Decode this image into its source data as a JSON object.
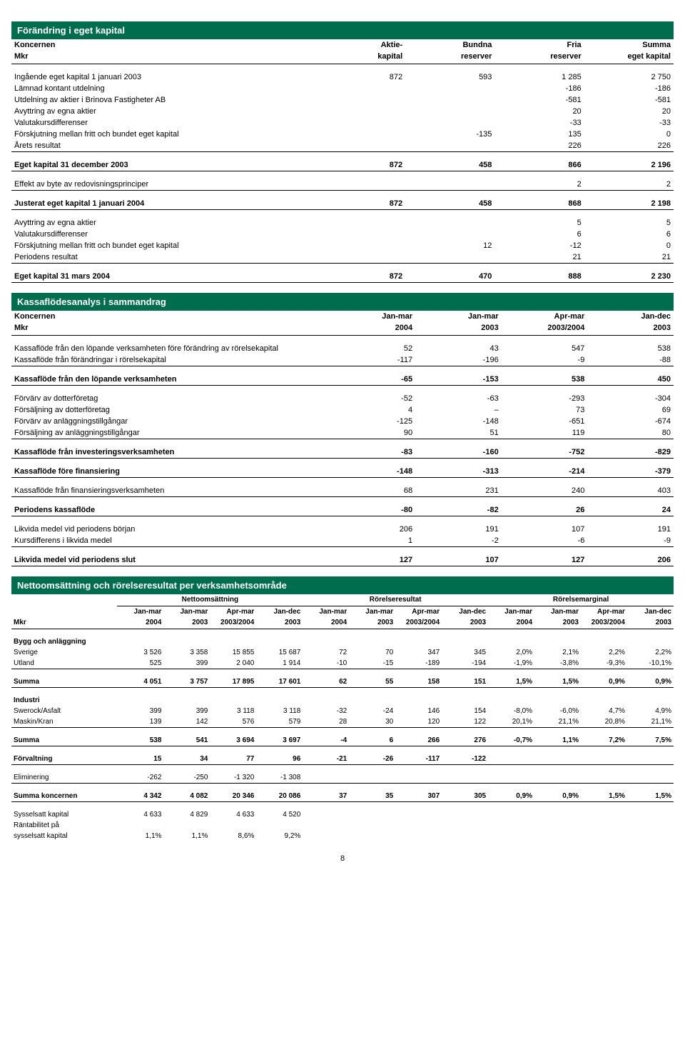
{
  "equity": {
    "title": "Förändring i eget kapital",
    "head_left1": "Koncernen",
    "head_left2": "Mkr",
    "head_c1a": "Aktie-",
    "head_c1b": "kapital",
    "head_c2a": "Bundna",
    "head_c2b": "reserver",
    "head_c3a": "Fria",
    "head_c3b": "reserver",
    "head_c4a": "Summa",
    "head_c4b": "eget kapital",
    "r1": {
      "l": "Ingående eget kapital 1 januari 2003",
      "c1": "872",
      "c2": "593",
      "c3": "1 285",
      "c4": "2 750"
    },
    "r2": {
      "l": "Lämnad kontant utdelning",
      "c1": "",
      "c2": "",
      "c3": "-186",
      "c4": "-186"
    },
    "r3": {
      "l": "Utdelning av aktier i Brinova Fastigheter AB",
      "c1": "",
      "c2": "",
      "c3": "-581",
      "c4": "-581"
    },
    "r4": {
      "l": "Avyttring av egna aktier",
      "c1": "",
      "c2": "",
      "c3": "20",
      "c4": "20"
    },
    "r5": {
      "l": "Valutakursdifferenser",
      "c1": "",
      "c2": "",
      "c3": "-33",
      "c4": "-33"
    },
    "r6": {
      "l": "Förskjutning mellan fritt och bundet eget kapital",
      "c1": "",
      "c2": "-135",
      "c3": "135",
      "c4": "0"
    },
    "r7": {
      "l": "Årets resultat",
      "c1": "",
      "c2": "",
      "c3": "226",
      "c4": "226"
    },
    "r8": {
      "l": "Eget kapital 31 december 2003",
      "c1": "872",
      "c2": "458",
      "c3": "866",
      "c4": "2 196"
    },
    "r9": {
      "l": "Effekt av byte av redovisningsprinciper",
      "c1": "",
      "c2": "",
      "c3": "2",
      "c4": "2"
    },
    "r10": {
      "l": "Justerat eget kapital 1 januari 2004",
      "c1": "872",
      "c2": "458",
      "c3": "868",
      "c4": "2 198"
    },
    "r11": {
      "l": "Avyttring av egna aktier",
      "c1": "",
      "c2": "",
      "c3": "5",
      "c4": "5"
    },
    "r12": {
      "l": "Valutakursdifferenser",
      "c1": "",
      "c2": "",
      "c3": "6",
      "c4": "6"
    },
    "r13": {
      "l": "Förskjutning mellan fritt och bundet eget kapital",
      "c1": "",
      "c2": "12",
      "c3": "-12",
      "c4": "0"
    },
    "r14": {
      "l": "Periodens resultat",
      "c1": "",
      "c2": "",
      "c3": "21",
      "c4": "21"
    },
    "r15": {
      "l": "Eget kapital 31 mars 2004",
      "c1": "872",
      "c2": "470",
      "c3": "888",
      "c4": "2 230"
    }
  },
  "cashflow": {
    "title": "Kassaflödesanalys i sammandrag",
    "head_left1": "Koncernen",
    "head_left2": "Mkr",
    "h1a": "Jan-mar",
    "h1b": "2004",
    "h2a": "Jan-mar",
    "h2b": "2003",
    "h3a": "Apr-mar",
    "h3b": "2003/2004",
    "h4a": "Jan-dec",
    "h4b": "2003",
    "r1": {
      "l": "Kassaflöde från den löpande verksamheten före förändring av rörelsekapital",
      "c1": "52",
      "c2": "43",
      "c3": "547",
      "c4": "538"
    },
    "r2": {
      "l": "Kassaflöde från förändringar i rörelsekapital",
      "c1": "-117",
      "c2": "-196",
      "c3": "-9",
      "c4": "-88"
    },
    "r3": {
      "l": "Kassaflöde från den löpande verksamheten",
      "c1": "-65",
      "c2": "-153",
      "c3": "538",
      "c4": "450"
    },
    "r4": {
      "l": "Förvärv av dotterföretag",
      "c1": "-52",
      "c2": "-63",
      "c3": "-293",
      "c4": "-304"
    },
    "r5": {
      "l": "Försäljning av dotterföretag",
      "c1": "4",
      "c2": "–",
      "c3": "73",
      "c4": "69"
    },
    "r6": {
      "l": "Förvärv av anläggningstillgångar",
      "c1": "-125",
      "c2": "-148",
      "c3": "-651",
      "c4": "-674"
    },
    "r7": {
      "l": "Försäljning av anläggningstillgångar",
      "c1": "90",
      "c2": "51",
      "c3": "119",
      "c4": "80"
    },
    "r8": {
      "l": "Kassaflöde från investeringsverksamheten",
      "c1": "-83",
      "c2": "-160",
      "c3": "-752",
      "c4": "-829"
    },
    "r9": {
      "l": "Kassaflöde före finansiering",
      "c1": "-148",
      "c2": "-313",
      "c3": "-214",
      "c4": "-379"
    },
    "r10": {
      "l": "Kassaflöde från finansieringsverksamheten",
      "c1": "68",
      "c2": "231",
      "c3": "240",
      "c4": "403"
    },
    "r11": {
      "l": "Periodens kassaflöde",
      "c1": "-80",
      "c2": "-82",
      "c3": "26",
      "c4": "24"
    },
    "r12": {
      "l": "Likvida medel vid periodens början",
      "c1": "206",
      "c2": "191",
      "c3": "107",
      "c4": "191"
    },
    "r13": {
      "l": "Kursdifferens i likvida medel",
      "c1": "1",
      "c2": "-2",
      "c3": "-6",
      "c4": "-9"
    },
    "r14": {
      "l": "Likvida medel vid periodens slut",
      "c1": "127",
      "c2": "107",
      "c3": "127",
      "c4": "206"
    }
  },
  "segment": {
    "title": "Nettoomsättning och rörelseresultat per verksamhetsområde",
    "g1": "Nettoomsättning",
    "g2": "Rörelseresultat",
    "g3": "Rörelsemarginal",
    "mkr": "Mkr",
    "p1a": "Jan-mar",
    "p1b": "2004",
    "p2a": "Jan-mar",
    "p2b": "2003",
    "p3a": "Apr-mar",
    "p3b": "2003/2004",
    "p4a": "Jan-dec",
    "p4b": "2003",
    "grp_bygg": "Bygg och anläggning",
    "sverige": {
      "l": "Sverige",
      "n1": "3 526",
      "n2": "3 358",
      "n3": "15 855",
      "n4": "15 687",
      "r1": "72",
      "r2": "70",
      "r3": "347",
      "r4": "345",
      "m1": "2,0%",
      "m2": "2,1%",
      "m3": "2,2%",
      "m4": "2,2%"
    },
    "utland": {
      "l": "Utland",
      "n1": "525",
      "n2": "399",
      "n3": "2 040",
      "n4": "1 914",
      "r1": "-10",
      "r2": "-15",
      "r3": "-189",
      "r4": "-194",
      "m1": "-1,9%",
      "m2": "-3,8%",
      "m3": "-9,3%",
      "m4": "-10,1%"
    },
    "sum1": {
      "l": "Summa",
      "n1": "4 051",
      "n2": "3 757",
      "n3": "17 895",
      "n4": "17 601",
      "r1": "62",
      "r2": "55",
      "r3": "158",
      "r4": "151",
      "m1": "1,5%",
      "m2": "1,5%",
      "m3": "0,9%",
      "m4": "0,9%"
    },
    "grp_ind": "Industri",
    "swerock": {
      "l": "Swerock/Asfalt",
      "n1": "399",
      "n2": "399",
      "n3": "3 118",
      "n4": "3 118",
      "r1": "-32",
      "r2": "-24",
      "r3": "146",
      "r4": "154",
      "m1": "-8,0%",
      "m2": "-6,0%",
      "m3": "4,7%",
      "m4": "4,9%"
    },
    "maskin": {
      "l": "Maskin/Kran",
      "n1": "139",
      "n2": "142",
      "n3": "576",
      "n4": "579",
      "r1": "28",
      "r2": "30",
      "r3": "120",
      "r4": "122",
      "m1": "20,1%",
      "m2": "21,1%",
      "m3": "20,8%",
      "m4": "21,1%"
    },
    "sum2": {
      "l": "Summa",
      "n1": "538",
      "n2": "541",
      "n3": "3 694",
      "n4": "3 697",
      "r1": "-4",
      "r2": "6",
      "r3": "266",
      "r4": "276",
      "m1": "-0,7%",
      "m2": "1,1%",
      "m3": "7,2%",
      "m4": "7,5%"
    },
    "forv": {
      "l": "Förvaltning",
      "n1": "15",
      "n2": "34",
      "n3": "77",
      "n4": "96",
      "r1": "-21",
      "r2": "-26",
      "r3": "-117",
      "r4": "-122",
      "m1": "",
      "m2": "",
      "m3": "",
      "m4": ""
    },
    "elim": {
      "l": "Eliminering",
      "n1": "-262",
      "n2": "-250",
      "n3": "-1 320",
      "n4": "-1 308",
      "r1": "",
      "r2": "",
      "r3": "",
      "r4": "",
      "m1": "",
      "m2": "",
      "m3": "",
      "m4": ""
    },
    "sumk": {
      "l": "Summa koncernen",
      "n1": "4 342",
      "n2": "4 082",
      "n3": "20 346",
      "n4": "20 086",
      "r1": "37",
      "r2": "35",
      "r3": "307",
      "r4": "305",
      "m1": "0,9%",
      "m2": "0,9%",
      "m3": "1,5%",
      "m4": "1,5%"
    },
    "sk": {
      "l": "Sysselsatt kapital",
      "n1": "4 633",
      "n2": "4 829",
      "n3": "4 633",
      "n4": "4 520"
    },
    "rant_l1": "Räntabilitet på",
    "rant_l2": "sysselsatt kapital",
    "rant": {
      "n1": "1,1%",
      "n2": "1,1%",
      "n3": "8,6%",
      "n4": "9,2%"
    }
  },
  "page_number": "8"
}
